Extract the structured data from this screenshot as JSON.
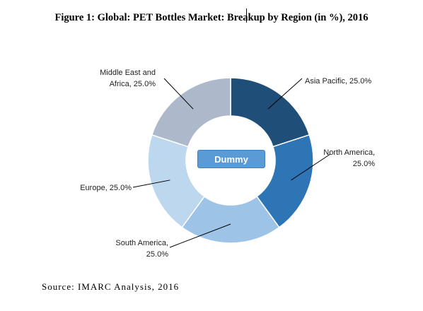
{
  "title": "Figure 1: Global: PET Bottles Market: Breakup by Region (in %), 2016",
  "badge": "Dummy",
  "source": "Source: IMARC Analysis, 2016",
  "chart_data": {
    "type": "pie",
    "variant": "donut",
    "title": "Figure 1: Global: PET Bottles Market: Breakup by Region (in %), 2016",
    "categories": [
      "Asia Pacific",
      "North America",
      "South America",
      "Europe",
      "Middle East and Africa"
    ],
    "values": [
      25.0,
      25.0,
      25.0,
      25.0,
      25.0
    ],
    "label_lines": [
      [
        "Asia Pacific, 25.0%"
      ],
      [
        "North America,",
        "25.0%"
      ],
      [
        "South America,",
        "25.0%"
      ],
      [
        "Europe, 25.0%"
      ],
      [
        "Middle East and",
        "Africa, 25.0%"
      ]
    ],
    "colors": [
      "#1f4e79",
      "#2e75b6",
      "#9dc3e6",
      "#bdd7ee",
      "#adb9ca"
    ],
    "legend": "none"
  }
}
